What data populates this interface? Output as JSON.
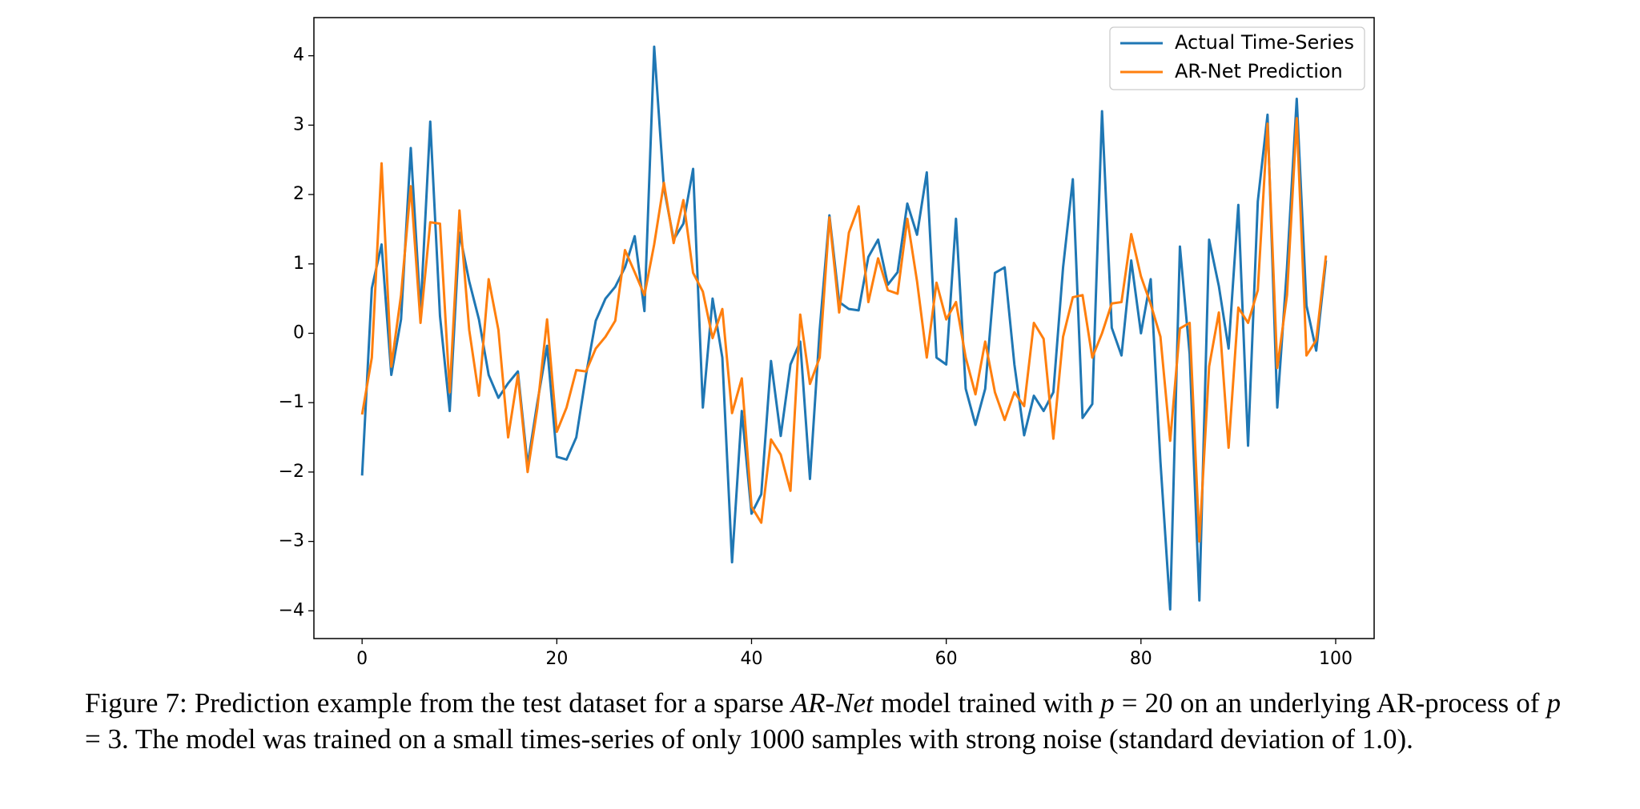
{
  "chart_data": {
    "type": "line",
    "x": [
      0,
      1,
      2,
      3,
      4,
      5,
      6,
      7,
      8,
      9,
      10,
      11,
      12,
      13,
      14,
      15,
      16,
      17,
      18,
      19,
      20,
      21,
      22,
      23,
      24,
      25,
      26,
      27,
      28,
      29,
      30,
      31,
      32,
      33,
      34,
      35,
      36,
      37,
      38,
      39,
      40,
      41,
      42,
      43,
      44,
      45,
      46,
      47,
      48,
      49,
      50,
      51,
      52,
      53,
      54,
      55,
      56,
      57,
      58,
      59,
      60,
      61,
      62,
      63,
      64,
      65,
      66,
      67,
      68,
      69,
      70,
      71,
      72,
      73,
      74,
      75,
      76,
      77,
      78,
      79,
      80,
      81,
      82,
      83,
      84,
      85,
      86,
      87,
      88,
      89,
      90,
      91,
      92,
      93,
      94,
      95,
      96,
      97,
      98,
      99
    ],
    "series": [
      {
        "name": "Actual Time-Series",
        "color": "#1f77b4",
        "values": [
          -2.05,
          0.65,
          1.28,
          -0.6,
          0.2,
          2.67,
          0.3,
          3.05,
          0.25,
          -1.12,
          1.45,
          0.75,
          0.2,
          -0.6,
          -0.93,
          -0.72,
          -0.55,
          -1.9,
          -1.0,
          -0.18,
          -1.78,
          -1.82,
          -1.5,
          -0.6,
          0.18,
          0.5,
          0.67,
          0.95,
          1.4,
          0.32,
          4.13,
          2.1,
          1.35,
          1.58,
          2.37,
          -1.07,
          0.5,
          -0.35,
          -3.3,
          -1.12,
          -2.6,
          -2.32,
          -0.4,
          -1.48,
          -0.45,
          -0.12,
          -2.1,
          0.05,
          1.7,
          0.45,
          0.35,
          0.33,
          1.1,
          1.35,
          0.7,
          0.88,
          1.87,
          1.42,
          2.32,
          -0.35,
          -0.45,
          1.65,
          -0.8,
          -1.32,
          -0.8,
          0.87,
          0.95,
          -0.45,
          -1.47,
          -0.9,
          -1.12,
          -0.85,
          0.95,
          2.22,
          -1.22,
          -1.02,
          3.2,
          0.08,
          -0.32,
          1.05,
          0.0,
          0.78,
          -1.85,
          -3.98,
          1.25,
          -0.3,
          -3.85,
          1.35,
          0.68,
          -0.22,
          1.85,
          -1.62,
          1.9,
          3.15,
          -1.07,
          0.95,
          3.38,
          0.4,
          -0.25,
          1.05
        ]
      },
      {
        "name": "AR-Net Prediction",
        "color": "#ff7f0e",
        "values": [
          -1.17,
          -0.35,
          2.45,
          -0.48,
          0.55,
          2.12,
          0.15,
          1.6,
          1.58,
          -0.85,
          1.77,
          0.05,
          -0.9,
          0.78,
          0.05,
          -1.5,
          -0.6,
          -2.0,
          -1.08,
          0.2,
          -1.42,
          -1.07,
          -0.53,
          -0.55,
          -0.22,
          -0.05,
          0.18,
          1.2,
          0.88,
          0.55,
          1.28,
          2.17,
          1.3,
          1.92,
          0.87,
          0.6,
          -0.07,
          0.35,
          -1.15,
          -0.65,
          -2.5,
          -2.73,
          -1.53,
          -1.75,
          -2.27,
          0.27,
          -0.73,
          -0.35,
          1.67,
          0.3,
          1.45,
          1.83,
          0.45,
          1.08,
          0.62,
          0.57,
          1.65,
          0.75,
          -0.35,
          0.73,
          0.2,
          0.45,
          -0.35,
          -0.88,
          -0.12,
          -0.85,
          -1.25,
          -0.85,
          -1.05,
          0.15,
          -0.08,
          -1.52,
          -0.05,
          0.52,
          0.55,
          -0.35,
          0.0,
          0.43,
          0.45,
          1.43,
          0.82,
          0.42,
          -0.05,
          -1.55,
          0.07,
          0.15,
          -3.0,
          -0.48,
          0.3,
          -1.65,
          0.37,
          0.15,
          0.62,
          3.02,
          -0.5,
          0.55,
          3.1,
          -0.32,
          -0.1,
          1.12
        ]
      }
    ],
    "xlim": [
      -4.95,
      103.95
    ],
    "ylim": [
      -4.4,
      4.55
    ],
    "xticks": [
      0,
      20,
      40,
      60,
      80,
      100
    ],
    "yticks": [
      {
        "value": -4,
        "label": "−4"
      },
      {
        "value": -3,
        "label": "−3"
      },
      {
        "value": -2,
        "label": "−2"
      },
      {
        "value": -1,
        "label": "−1"
      },
      0,
      1,
      2,
      3,
      4
    ],
    "legend": "upper right",
    "caption": [
      {
        "text": "Figure 7: Prediction example from the test dataset for a sparse ",
        "style": "normal"
      },
      {
        "text": "AR-Net",
        "style": "italic"
      },
      {
        "text": "  model trained with ",
        "style": "normal"
      },
      {
        "text": "p",
        "style": "italic"
      },
      {
        "text": " = 20 on an underlying AR-process of ",
        "style": "normal"
      },
      {
        "text": "p",
        "style": "italic"
      },
      {
        "text": " = 3. The model was trained on a small times-series of only 1000 samples with strong noise (standard deviation of 1.0).",
        "style": "normal"
      }
    ]
  }
}
